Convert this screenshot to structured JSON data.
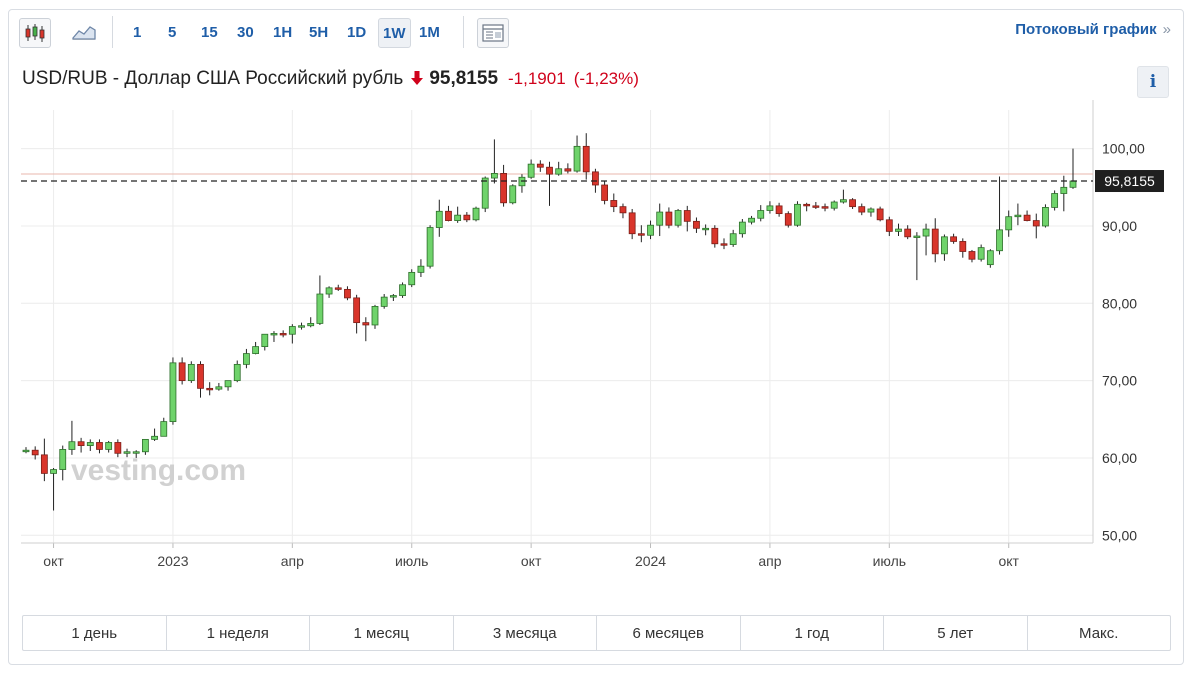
{
  "toolbar": {
    "intervals": [
      "1",
      "5",
      "15",
      "30",
      "1H",
      "5H",
      "1D",
      "1W",
      "1M"
    ],
    "active_interval": "1W",
    "stream_link": "Потоковый график",
    "stream_chevron": "»"
  },
  "header": {
    "pair": "USD/RUB - Доллар США Российский рубль",
    "price": "95,8155",
    "change": "-1,1901",
    "change_pct": "(-1,23%)",
    "info_label": "i",
    "colors": {
      "down": "#d0021b",
      "up": "#2bb02b"
    }
  },
  "watermark": "vesting.com",
  "ranges": [
    "1 день",
    "1 неделя",
    "1 месяц",
    "3 месяца",
    "6 месяцев",
    "1 год",
    "5 лет",
    "Макс."
  ],
  "chart_data": {
    "type": "candlestick",
    "y_ticks": [
      "100,00",
      "90,00",
      "80,00",
      "70,00",
      "60,00",
      "50,00"
    ],
    "y_tick_values": [
      100,
      90,
      80,
      70,
      60,
      50
    ],
    "ylim": [
      49,
      105
    ],
    "x_ticks": [
      "окт",
      "2023",
      "апр",
      "июль",
      "окт",
      "2024",
      "апр",
      "июль",
      "окт"
    ],
    "x_tick_index": [
      3,
      16,
      29,
      42,
      55,
      68,
      81,
      94,
      107
    ],
    "current_price": 95.8155,
    "current_price_label": "95,8155",
    "grid": true,
    "candles": [
      [
        60.9,
        61.4,
        60.6,
        61.0
      ],
      [
        61.0,
        61.5,
        59.8,
        60.4
      ],
      [
        60.4,
        62.5,
        57.0,
        58.0
      ],
      [
        58.0,
        58.7,
        53.2,
        58.5
      ],
      [
        58.5,
        61.6,
        57.1,
        61.1
      ],
      [
        61.1,
        64.8,
        60.4,
        62.1
      ],
      [
        62.1,
        62.6,
        60.7,
        61.6
      ],
      [
        61.6,
        62.4,
        60.9,
        62.0
      ],
      [
        62.0,
        62.4,
        60.6,
        61.1
      ],
      [
        61.1,
        62.2,
        60.7,
        62.0
      ],
      [
        62.0,
        62.4,
        60.1,
        60.6
      ],
      [
        60.6,
        61.2,
        60.1,
        60.8
      ],
      [
        60.8,
        61.0,
        60.0,
        60.8
      ],
      [
        60.8,
        62.4,
        60.4,
        62.4
      ],
      [
        62.4,
        63.8,
        62.2,
        62.8
      ],
      [
        62.8,
        65.2,
        62.8,
        64.7
      ],
      [
        64.7,
        73.0,
        64.3,
        72.3
      ],
      [
        72.3,
        73.0,
        69.5,
        70.0
      ],
      [
        70.0,
        72.5,
        69.7,
        72.1
      ],
      [
        72.1,
        72.5,
        67.8,
        69.0
      ],
      [
        69.0,
        69.8,
        68.1,
        68.9
      ],
      [
        68.9,
        69.7,
        68.7,
        69.2
      ],
      [
        69.2,
        70.0,
        68.7,
        70.0
      ],
      [
        70.0,
        72.6,
        69.8,
        72.1
      ],
      [
        72.1,
        74.1,
        71.6,
        73.5
      ],
      [
        73.5,
        75.0,
        73.4,
        74.4
      ],
      [
        74.4,
        76.0,
        73.9,
        76.0
      ],
      [
        76.0,
        76.4,
        75.0,
        76.1
      ],
      [
        76.1,
        76.5,
        75.6,
        76.0
      ],
      [
        76.0,
        77.3,
        74.8,
        77.0
      ],
      [
        77.0,
        77.5,
        76.6,
        77.1
      ],
      [
        77.1,
        78.2,
        76.9,
        77.4
      ],
      [
        77.4,
        83.6,
        77.2,
        81.2
      ],
      [
        81.2,
        82.2,
        80.7,
        82.0
      ],
      [
        82.0,
        82.4,
        81.6,
        81.8
      ],
      [
        81.8,
        82.2,
        80.4,
        80.7
      ],
      [
        80.7,
        81.1,
        76.1,
        77.5
      ],
      [
        77.5,
        78.2,
        75.1,
        77.2
      ],
      [
        77.2,
        79.8,
        76.7,
        79.6
      ],
      [
        79.6,
        81.2,
        79.3,
        80.8
      ],
      [
        80.8,
        81.2,
        80.3,
        81.0
      ],
      [
        81.0,
        82.7,
        80.7,
        82.4
      ],
      [
        82.4,
        84.4,
        82.1,
        84.0
      ],
      [
        84.0,
        85.7,
        83.4,
        84.8
      ],
      [
        84.8,
        90.1,
        84.5,
        89.8
      ],
      [
        89.8,
        93.4,
        88.6,
        91.9
      ],
      [
        91.9,
        92.6,
        90.6,
        90.7
      ],
      [
        90.7,
        92.5,
        90.4,
        91.4
      ],
      [
        91.4,
        91.8,
        90.5,
        90.8
      ],
      [
        90.8,
        92.5,
        90.6,
        92.3
      ],
      [
        92.3,
        96.4,
        91.8,
        96.2
      ],
      [
        96.2,
        101.2,
        95.5,
        96.8
      ],
      [
        96.8,
        97.9,
        92.5,
        93.0
      ],
      [
        93.0,
        95.4,
        92.8,
        95.2
      ],
      [
        95.2,
        96.7,
        94.3,
        96.3
      ],
      [
        96.3,
        98.6,
        96.1,
        98.0
      ],
      [
        98.0,
        98.5,
        97.0,
        97.6
      ],
      [
        97.6,
        98.3,
        92.6,
        96.7
      ],
      [
        96.7,
        98.3,
        96.5,
        97.4
      ],
      [
        97.4,
        98.1,
        96.8,
        97.1
      ],
      [
        97.1,
        101.7,
        96.9,
        100.3
      ],
      [
        100.3,
        102.0,
        96.0,
        97.0
      ],
      [
        97.0,
        97.4,
        94.3,
        95.3
      ],
      [
        95.3,
        95.8,
        92.8,
        93.3
      ],
      [
        93.3,
        94.2,
        91.8,
        92.5
      ],
      [
        92.5,
        92.9,
        91.0,
        91.7
      ],
      [
        91.7,
        92.2,
        88.3,
        89.0
      ],
      [
        89.0,
        90.1,
        87.9,
        88.8
      ],
      [
        88.8,
        90.7,
        88.3,
        90.1
      ],
      [
        90.1,
        92.9,
        88.7,
        91.8
      ],
      [
        91.8,
        92.4,
        89.7,
        90.1
      ],
      [
        90.1,
        92.2,
        89.8,
        92.0
      ],
      [
        92.0,
        92.6,
        89.3,
        90.6
      ],
      [
        90.6,
        91.1,
        89.1,
        89.7
      ],
      [
        89.7,
        90.2,
        88.8,
        89.7
      ],
      [
        89.7,
        90.1,
        87.2,
        87.7
      ],
      [
        87.7,
        88.4,
        87.0,
        87.6
      ],
      [
        87.6,
        89.5,
        87.3,
        89.0
      ],
      [
        89.0,
        90.9,
        88.5,
        90.5
      ],
      [
        90.5,
        91.3,
        90.2,
        91.0
      ],
      [
        91.0,
        92.7,
        90.6,
        92.0
      ],
      [
        92.0,
        93.2,
        91.6,
        92.6
      ],
      [
        92.6,
        93.0,
        91.2,
        91.6
      ],
      [
        91.6,
        91.9,
        89.8,
        90.1
      ],
      [
        90.1,
        93.2,
        89.9,
        92.8
      ],
      [
        92.8,
        93.0,
        91.9,
        92.6
      ],
      [
        92.6,
        93.1,
        92.2,
        92.5
      ],
      [
        92.5,
        92.9,
        91.9,
        92.3
      ],
      [
        92.3,
        93.3,
        92.0,
        93.1
      ],
      [
        93.1,
        94.7,
        92.9,
        93.4
      ],
      [
        93.4,
        93.6,
        92.2,
        92.5
      ],
      [
        92.5,
        92.9,
        91.4,
        91.8
      ],
      [
        91.8,
        92.4,
        91.2,
        92.2
      ],
      [
        92.2,
        92.5,
        90.6,
        90.8
      ],
      [
        90.8,
        91.2,
        88.7,
        89.3
      ],
      [
        89.3,
        90.3,
        88.7,
        89.6
      ],
      [
        89.6,
        90.1,
        88.3,
        88.6
      ],
      [
        88.6,
        89.2,
        83.0,
        88.7
      ],
      [
        88.7,
        90.3,
        86.2,
        89.6
      ],
      [
        89.6,
        91.0,
        85.3,
        86.4
      ],
      [
        86.4,
        88.9,
        85.5,
        88.6
      ],
      [
        88.6,
        89.0,
        87.7,
        88.0
      ],
      [
        88.0,
        88.4,
        85.9,
        86.7
      ],
      [
        86.7,
        86.9,
        85.3,
        85.7
      ],
      [
        85.7,
        87.6,
        85.4,
        87.2
      ],
      [
        85.0,
        87.0,
        84.6,
        86.8
      ],
      [
        86.8,
        96.4,
        86.3,
        89.5
      ],
      [
        89.5,
        92.0,
        88.6,
        91.2
      ],
      [
        91.2,
        92.9,
        90.1,
        91.4
      ],
      [
        91.4,
        92.0,
        90.6,
        90.7
      ],
      [
        90.7,
        91.6,
        88.4,
        90.0
      ],
      [
        90.0,
        92.8,
        89.8,
        92.4
      ],
      [
        92.4,
        94.6,
        92.0,
        94.2
      ],
      [
        94.2,
        96.5,
        91.9,
        95.0
      ],
      [
        95.0,
        100.0,
        94.8,
        95.8155
      ]
    ]
  }
}
